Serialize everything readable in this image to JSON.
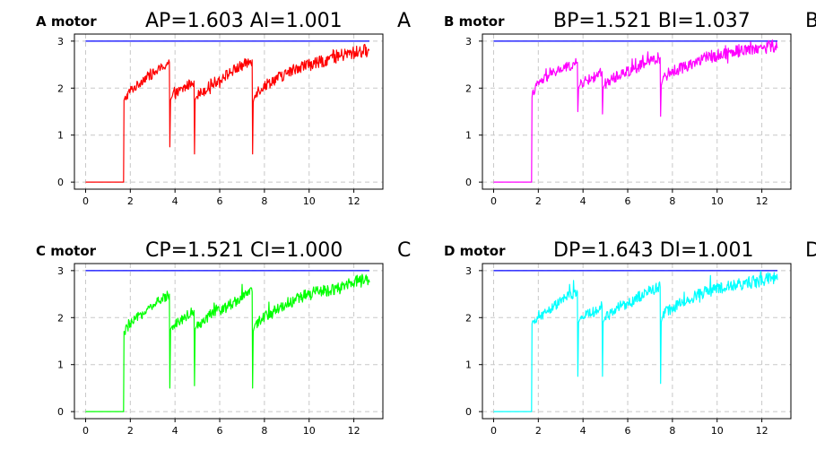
{
  "chart_data": [
    {
      "type": "line",
      "motor_label": "A motor",
      "params_label": "AP=1.603 AI=1.001",
      "tag": "A",
      "color": "#ff0000",
      "setpoint_color": "#0000ff",
      "xlim": [
        -0.5,
        13.3
      ],
      "ylim": [
        -0.15,
        3.15
      ],
      "xticks": [
        0,
        2,
        4,
        6,
        8,
        10,
        12
      ],
      "yticks": [
        0,
        1,
        2,
        3
      ],
      "grid": true,
      "series": [
        {
          "values": [
            [
              0,
              3
            ],
            [
              12.7,
              3
            ]
          ]
        },
        {
          "x": [
            0,
            1.7,
            1.72,
            1.8,
            2.0,
            2.3,
            2.6,
            3.0,
            3.3,
            3.6,
            3.75,
            3.77,
            3.8,
            3.85,
            3.9,
            4.1,
            4.4,
            4.7,
            4.85,
            4.87,
            4.9,
            4.95,
            5.0,
            5.3,
            5.7,
            6.2,
            6.7,
            7.1,
            7.45,
            7.47,
            7.5,
            7.55,
            7.6,
            8.0,
            8.5,
            9.0,
            9.5,
            10.0,
            10.5,
            11.0,
            11.5,
            12.0,
            12.5,
            12.7
          ],
          "y": [
            0,
            0,
            1.7,
            1.8,
            1.95,
            2.05,
            2.2,
            2.3,
            2.4,
            2.5,
            2.55,
            0.75,
            1.75,
            1.8,
            1.85,
            1.9,
            2.0,
            2.1,
            2.15,
            0.6,
            1.75,
            1.8,
            1.85,
            1.95,
            2.1,
            2.25,
            2.4,
            2.5,
            2.6,
            0.6,
            1.7,
            1.8,
            1.9,
            2.05,
            2.2,
            2.3,
            2.45,
            2.5,
            2.55,
            2.65,
            2.7,
            2.75,
            2.8,
            2.8
          ]
        }
      ]
    },
    {
      "type": "line",
      "motor_label": "B motor",
      "params_label": "BP=1.521 BI=1.037",
      "tag": "B",
      "color": "#ff00ff",
      "setpoint_color": "#0000ff",
      "xlim": [
        -0.5,
        13.3
      ],
      "ylim": [
        -0.15,
        3.15
      ],
      "xticks": [
        0,
        2,
        4,
        6,
        8,
        10,
        12
      ],
      "yticks": [
        0,
        1,
        2,
        3
      ],
      "grid": true,
      "series": [
        {
          "values": [
            [
              0,
              3
            ],
            [
              12.7,
              3
            ]
          ]
        },
        {
          "x": [
            0,
            1.7,
            1.72,
            1.8,
            2.0,
            2.3,
            2.6,
            3.0,
            3.3,
            3.6,
            3.75,
            3.77,
            3.8,
            3.85,
            3.9,
            4.1,
            4.4,
            4.7,
            4.85,
            4.87,
            4.9,
            4.95,
            5.0,
            5.3,
            5.7,
            6.2,
            6.7,
            7.1,
            7.45,
            7.47,
            7.5,
            7.55,
            7.6,
            8.0,
            8.5,
            9.0,
            9.5,
            10.0,
            10.5,
            11.0,
            11.5,
            12.0,
            12.5,
            12.7
          ],
          "y": [
            0,
            0,
            1.8,
            1.95,
            2.1,
            2.2,
            2.3,
            2.4,
            2.45,
            2.5,
            2.55,
            1.5,
            2.0,
            2.05,
            2.1,
            2.15,
            2.2,
            2.3,
            2.35,
            1.45,
            2.0,
            2.05,
            2.1,
            2.2,
            2.3,
            2.4,
            2.5,
            2.6,
            2.65,
            1.4,
            2.05,
            2.15,
            2.25,
            2.35,
            2.45,
            2.55,
            2.65,
            2.7,
            2.75,
            2.8,
            2.85,
            2.85,
            2.9,
            2.85
          ]
        }
      ]
    },
    {
      "type": "line",
      "motor_label": "C motor",
      "params_label": "CP=1.521 CI=1.000",
      "tag": "C",
      "color": "#00ff00",
      "setpoint_color": "#0000ff",
      "xlim": [
        -0.5,
        13.3
      ],
      "ylim": [
        -0.15,
        3.15
      ],
      "xticks": [
        0,
        2,
        4,
        6,
        8,
        10,
        12
      ],
      "yticks": [
        0,
        1,
        2,
        3
      ],
      "grid": true,
      "series": [
        {
          "values": [
            [
              0,
              3
            ],
            [
              12.7,
              3
            ]
          ]
        },
        {
          "x": [
            0,
            1.7,
            1.72,
            1.8,
            2.0,
            2.3,
            2.6,
            3.0,
            3.3,
            3.6,
            3.75,
            3.77,
            3.8,
            3.85,
            3.9,
            4.1,
            4.4,
            4.7,
            4.85,
            4.87,
            4.9,
            4.95,
            5.0,
            5.3,
            5.7,
            6.2,
            6.7,
            7.1,
            7.45,
            7.47,
            7.5,
            7.55,
            7.6,
            8.0,
            8.5,
            9.0,
            9.5,
            10.0,
            10.5,
            11.0,
            11.5,
            12.0,
            12.5,
            12.7
          ],
          "y": [
            0,
            0,
            1.65,
            1.75,
            1.85,
            2.0,
            2.1,
            2.25,
            2.35,
            2.45,
            2.5,
            0.5,
            1.75,
            1.8,
            1.85,
            1.9,
            2.0,
            2.1,
            2.15,
            0.55,
            1.75,
            1.8,
            1.85,
            1.95,
            2.1,
            2.2,
            2.35,
            2.45,
            2.55,
            0.5,
            1.7,
            1.8,
            1.9,
            2.0,
            2.15,
            2.3,
            2.4,
            2.5,
            2.55,
            2.6,
            2.65,
            2.75,
            2.8,
            2.75
          ]
        }
      ]
    },
    {
      "type": "line",
      "motor_label": "D motor",
      "params_label": "DP=1.643 DI=1.001",
      "tag": "D",
      "color": "#00ffff",
      "setpoint_color": "#0000ff",
      "xlim": [
        -0.5,
        13.3
      ],
      "ylim": [
        -0.15,
        3.15
      ],
      "xticks": [
        0,
        2,
        4,
        6,
        8,
        10,
        12
      ],
      "yticks": [
        0,
        1,
        2,
        3
      ],
      "grid": true,
      "series": [
        {
          "values": [
            [
              0,
              3
            ],
            [
              12.7,
              3
            ]
          ]
        },
        {
          "x": [
            0,
            1.7,
            1.72,
            1.8,
            2.0,
            2.3,
            2.6,
            3.0,
            3.3,
            3.6,
            3.75,
            3.77,
            3.8,
            3.85,
            3.9,
            4.1,
            4.4,
            4.7,
            4.85,
            4.87,
            4.9,
            4.95,
            5.0,
            5.3,
            5.7,
            6.2,
            6.7,
            7.1,
            7.45,
            7.47,
            7.5,
            7.55,
            7.6,
            8.0,
            8.5,
            9.0,
            9.5,
            10.0,
            10.5,
            11.0,
            11.5,
            12.0,
            12.5,
            12.7
          ],
          "y": [
            0,
            0,
            1.8,
            1.9,
            2.0,
            2.1,
            2.2,
            2.35,
            2.45,
            2.5,
            2.55,
            0.75,
            1.9,
            1.95,
            2.0,
            2.05,
            2.1,
            2.2,
            2.25,
            0.75,
            1.9,
            1.95,
            2.0,
            2.1,
            2.25,
            2.35,
            2.5,
            2.6,
            2.65,
            0.6,
            1.9,
            2.0,
            2.1,
            2.2,
            2.35,
            2.45,
            2.55,
            2.6,
            2.65,
            2.7,
            2.75,
            2.8,
            2.85,
            2.8
          ]
        }
      ]
    }
  ]
}
